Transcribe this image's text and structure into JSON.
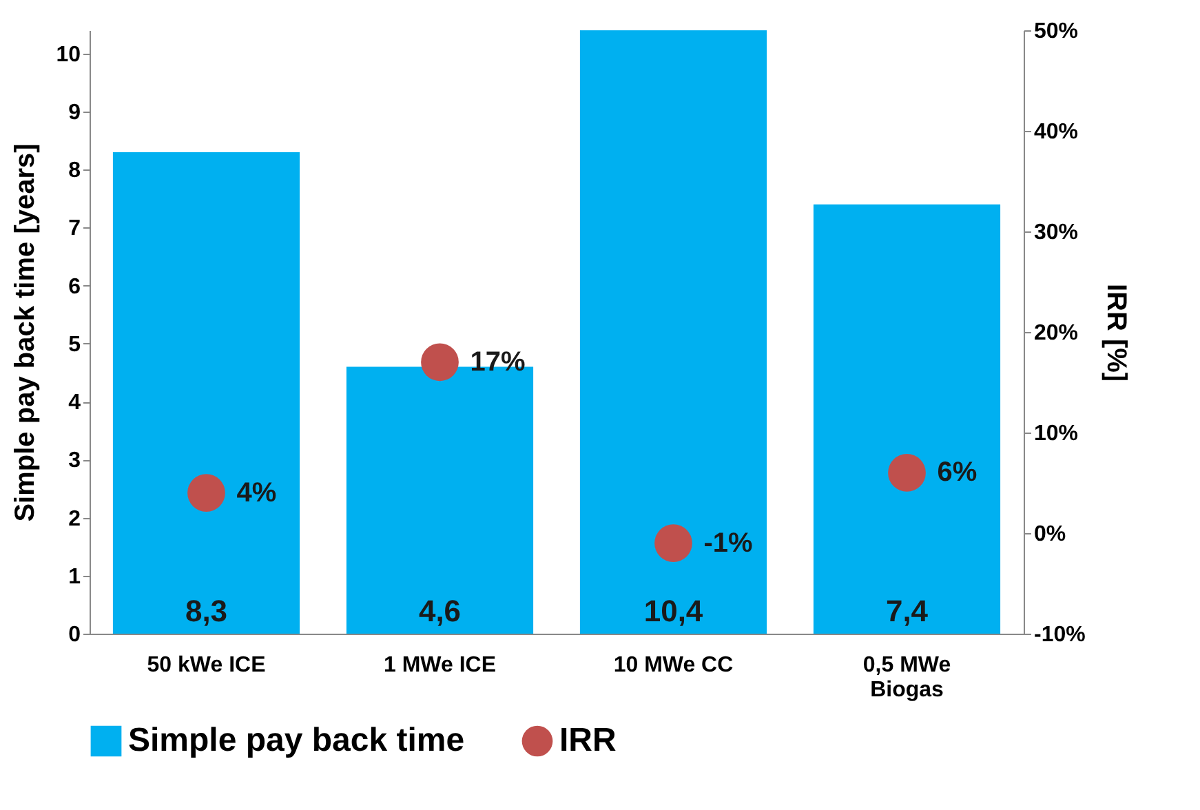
{
  "chart_data": {
    "type": "bar",
    "categories": [
      "50 kWe ICE",
      "1 MWe ICE",
      "10 MWe CC",
      "0,5 MWe Biogas"
    ],
    "ylabel": "Simple pay back time  [years]",
    "y2label": "IRR [%]",
    "ylim": [
      0,
      10.4
    ],
    "yticks": [
      0,
      1,
      2,
      3,
      4,
      5,
      6,
      7,
      8,
      9,
      10
    ],
    "y2lim": [
      -10,
      50
    ],
    "y2ticks": [
      {
        "value": -10,
        "label": "-10%"
      },
      {
        "value": 0,
        "label": "0%"
      },
      {
        "value": 10,
        "label": "10%"
      },
      {
        "value": 20,
        "label": "20%"
      },
      {
        "value": 30,
        "label": "30%"
      },
      {
        "value": 40,
        "label": "40%"
      },
      {
        "value": 50,
        "label": "50%"
      }
    ],
    "legend": "bottom",
    "marker": "circle",
    "series": [
      {
        "name": "Simple pay back time",
        "type": "bar",
        "color": "#00b0f0",
        "values": [
          8.3,
          4.6,
          10.4,
          7.4
        ],
        "value_labels": [
          "8,3",
          "4,6",
          "10,4",
          "7,4"
        ]
      },
      {
        "name": "IRR",
        "type": "scatter",
        "axis": "y2",
        "color": "#c0504d",
        "values": [
          4,
          17,
          -1,
          6
        ],
        "value_labels": [
          "4%",
          "17%",
          "-1%",
          "6%"
        ]
      }
    ]
  }
}
